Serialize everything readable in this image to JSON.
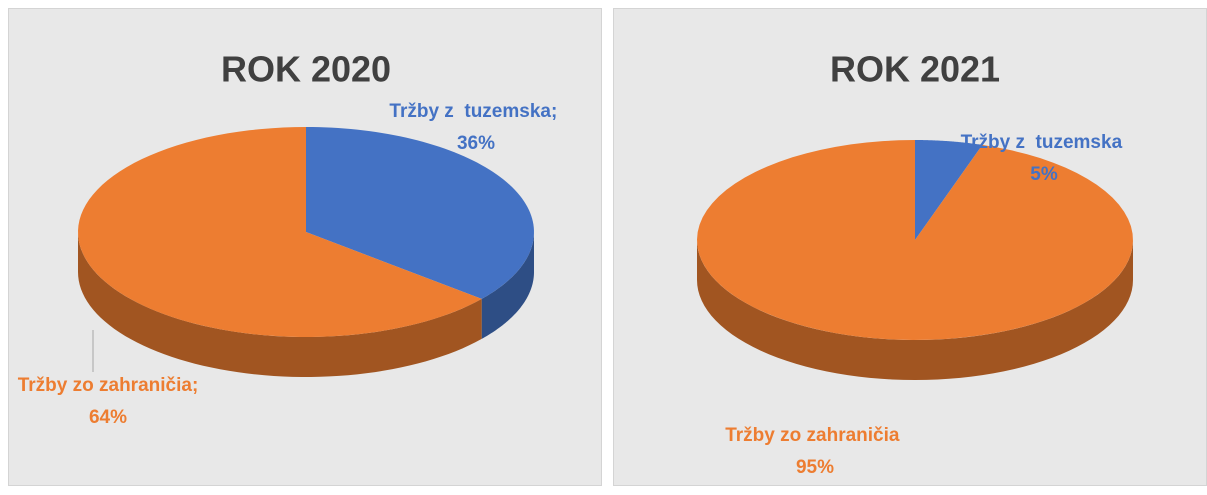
{
  "chart_data": [
    {
      "type": "pie",
      "title": "ROK 2020",
      "categories": [
        "Tržby z  tuzemska;",
        "Tržby zo zahraničia;"
      ],
      "values": [
        36,
        64
      ],
      "value_labels": [
        "36%",
        "64%"
      ],
      "colors": [
        "#4472c4",
        "#ed7d31"
      ]
    },
    {
      "type": "pie",
      "title": "ROK 2021",
      "categories": [
        "Tržby z  tuzemska",
        "Tržby zo zahraničia"
      ],
      "values": [
        5,
        95
      ],
      "value_labels": [
        "5%",
        "95%"
      ],
      "colors": [
        "#4472c4",
        "#ed7d31"
      ]
    }
  ]
}
